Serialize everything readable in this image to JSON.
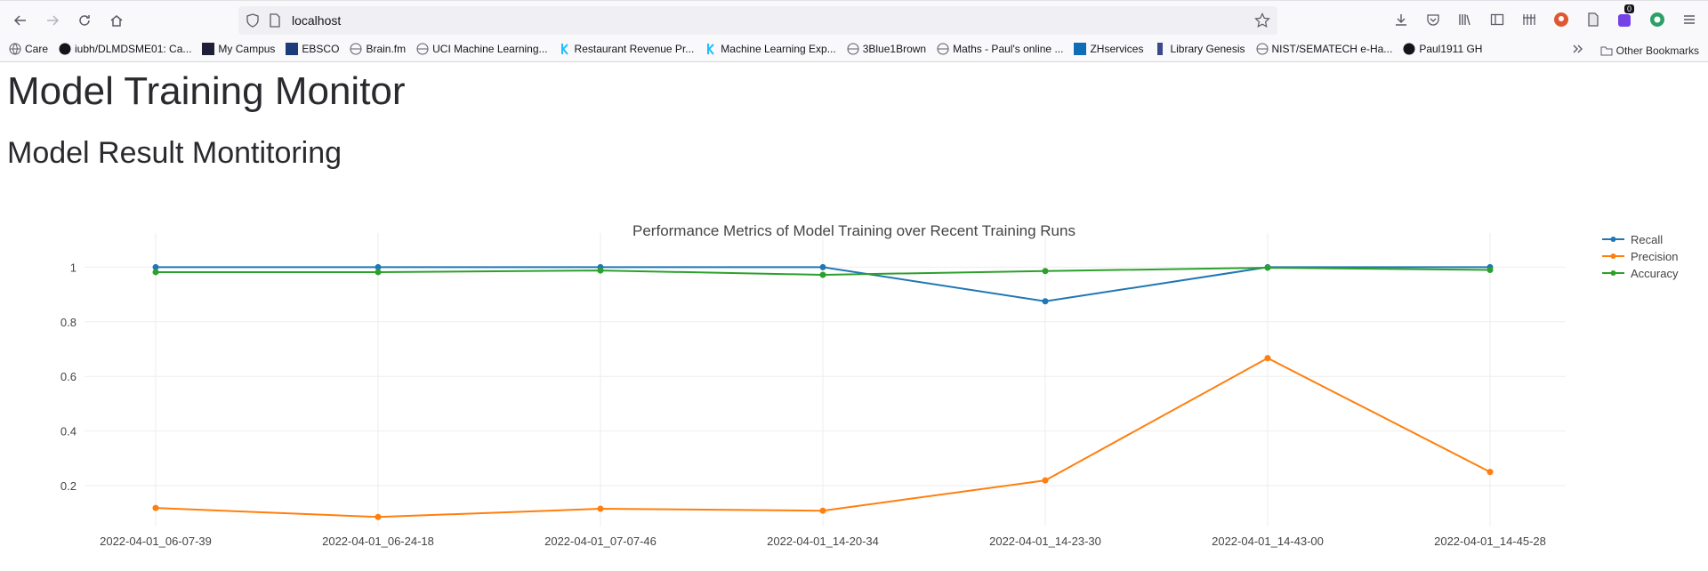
{
  "browser": {
    "url": "localhost",
    "bookmarks": [
      "Care",
      "iubh/DLMDSME01: Ca...",
      "My Campus",
      "EBSCO",
      "Brain.fm",
      "UCI Machine Learning...",
      "Restaurant Revenue Pr...",
      "Machine Learning Exp...",
      "3Blue1Brown",
      "Maths - Paul's online ...",
      "ZHservices",
      "Library Genesis",
      "NIST/SEMATECH e-Ha...",
      "Paul1911 GH"
    ],
    "other_bookmarks": "Other Bookmarks",
    "badge_count": "0"
  },
  "page": {
    "title": "Model Training Monitor",
    "subtitle": "Model Result Montitoring"
  },
  "chart_data": {
    "type": "line",
    "title": "Performance Metrics of Model Training over Recent Training Runs",
    "xlabel": "",
    "ylabel": "",
    "categories": [
      "2022-04-01_06-07-39",
      "2022-04-01_06-24-18",
      "2022-04-01_07-07-46",
      "2022-04-01_14-20-34",
      "2022-04-01_14-23-30",
      "2022-04-01_14-43-00",
      "2022-04-01_14-45-28"
    ],
    "yticks": [
      0.2,
      0.4,
      0.6,
      0.8,
      1
    ],
    "ylim": [
      0.05,
      1.06
    ],
    "grid": true,
    "legend_position": "top-right",
    "series": [
      {
        "name": "Recall",
        "color": "#1f77b4",
        "values": [
          1.0,
          1.0,
          1.0,
          1.0,
          0.875,
          1.0,
          1.0
        ]
      },
      {
        "name": "Precision",
        "color": "#ff7f0e",
        "values": [
          0.118,
          0.085,
          0.115,
          0.108,
          0.219,
          0.667,
          0.25
        ]
      },
      {
        "name": "Accuracy",
        "color": "#2ca02c",
        "values": [
          0.982,
          0.982,
          0.988,
          0.972,
          0.986,
          0.998,
          0.99
        ]
      }
    ]
  }
}
